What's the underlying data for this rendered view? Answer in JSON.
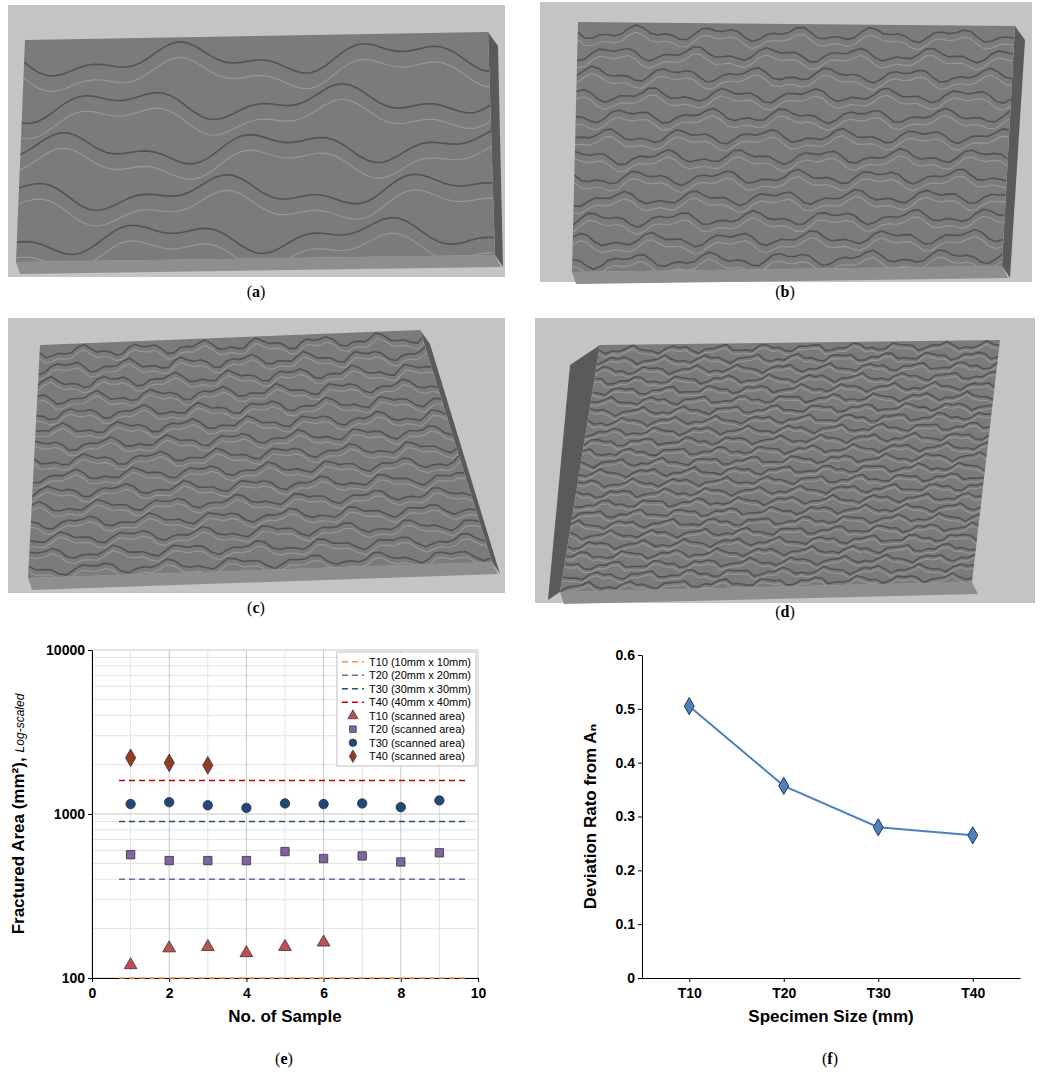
{
  "panel_labels": [
    "(a)",
    "(b)",
    "(c)",
    "(d)",
    "(e)",
    "(f)"
  ],
  "chart_data": [
    {
      "type": "scatter",
      "xlabel": "No. of Sample",
      "ylabel": "Fractured Area (mm²),",
      "ylabel_note": "Log-scaled",
      "xlim": [
        0,
        10
      ],
      "xticks": [
        0,
        2,
        4,
        6,
        8,
        10
      ],
      "ylim": [
        100,
        10000
      ],
      "yticks": [
        100,
        1000,
        10000
      ],
      "log": "y",
      "grid": true,
      "legend": "upper right",
      "xminor": [
        1,
        3,
        5,
        7,
        9
      ],
      "yminor": [
        200,
        300,
        400,
        500,
        600,
        700,
        800,
        900,
        2000,
        3000,
        4000,
        5000,
        6000,
        7000,
        8000,
        9000
      ],
      "series": [
        {
          "name": "T10 (10mm x 10mm)",
          "type": "line",
          "line_style": "dashed",
          "color": "#f79646",
          "x": [
            0.7,
            9.7
          ],
          "values": [
            100,
            100
          ]
        },
        {
          "name": "T20 (20mm x 20mm)",
          "type": "line",
          "line_style": "dashed",
          "color": "#8064a2",
          "x": [
            0.7,
            9.7
          ],
          "values": [
            400,
            400
          ]
        },
        {
          "name": "T30 (30mm x 30mm)",
          "type": "line",
          "line_style": "dashed",
          "color": "#1f4e79",
          "x": [
            0.7,
            9.7
          ],
          "values": [
            900,
            900
          ]
        },
        {
          "name": "T40 (40mm x 40mm)",
          "type": "line",
          "line_style": "dashed",
          "color": "#c00000",
          "x": [
            0.7,
            9.7
          ],
          "values": [
            1600,
            1600
          ]
        },
        {
          "name": "T10 (scanned area)",
          "type": "scatter",
          "marker": "triangle",
          "color": "#c0504d",
          "x": [
            1,
            2,
            3,
            4,
            5,
            6
          ],
          "values": [
            120,
            152,
            155,
            142,
            155,
            165
          ]
        },
        {
          "name": "T20 (scanned area)",
          "type": "scatter",
          "marker": "square",
          "color": "#8064a2",
          "x": [
            1,
            2,
            3,
            4,
            5,
            6,
            7,
            8,
            9
          ],
          "values": [
            565,
            520,
            520,
            520,
            590,
            535,
            555,
            510,
            580
          ]
        },
        {
          "name": "T30 (scanned area)",
          "type": "scatter",
          "marker": "circle",
          "color": "#1f497d",
          "x": [
            1,
            2,
            3,
            4,
            5,
            6,
            7,
            8,
            9
          ],
          "values": [
            1150,
            1180,
            1130,
            1090,
            1160,
            1150,
            1160,
            1100,
            1210
          ]
        },
        {
          "name": "T40 (scanned area)",
          "type": "scatter",
          "marker": "diamond",
          "color": "#943c23",
          "x": [
            1,
            2,
            3
          ],
          "values": [
            2200,
            2050,
            1980
          ]
        }
      ]
    },
    {
      "type": "line",
      "xlabel": "Specimen Size (mm)",
      "ylabel": "Deviation Rato from Aₙ",
      "categories": [
        "T10",
        "T20",
        "T30",
        "T40"
      ],
      "ylim": [
        0,
        0.6
      ],
      "yticks": [
        0,
        0.1,
        0.2,
        0.3,
        0.4,
        0.5,
        0.6
      ],
      "marker": "diamond",
      "color": "#4f81bd",
      "values": [
        0.505,
        0.357,
        0.28,
        0.265
      ]
    }
  ]
}
